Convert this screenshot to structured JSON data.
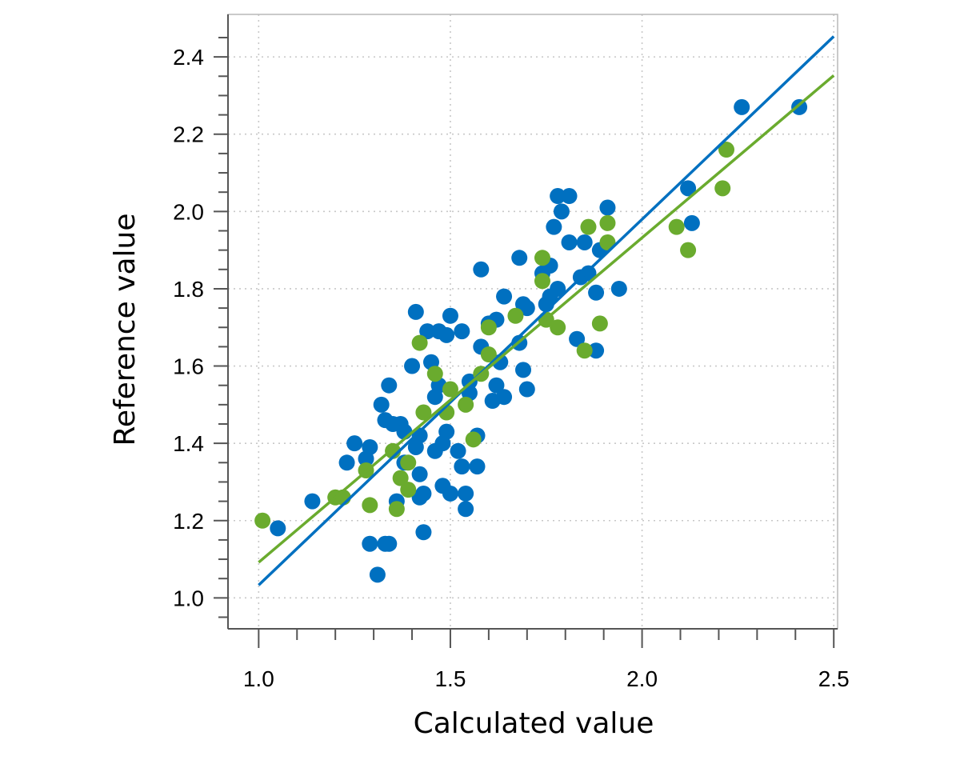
{
  "chart_data": {
    "type": "scatter",
    "title": "",
    "xlabel": "Calculated value",
    "ylabel": "Reference value",
    "xlim": [
      0.92,
      2.51
    ],
    "ylim": [
      0.92,
      2.51
    ],
    "x_ticks": [
      1.0,
      1.5,
      2.0,
      2.5
    ],
    "x_tick_labels": [
      "1.0",
      "1.5",
      "2.0",
      "2.5"
    ],
    "y_ticks": [
      1.0,
      1.2,
      1.4,
      1.6,
      1.8,
      2.0,
      2.2,
      2.4
    ],
    "y_tick_labels": [
      "1.0",
      "1.2",
      "1.4",
      "1.6",
      "1.8",
      "2.0",
      "2.2",
      "2.4"
    ],
    "grid": true,
    "legend": "none",
    "series": [
      {
        "color": "#0070C0",
        "points": [
          [
            1.05,
            1.18
          ],
          [
            1.14,
            1.25
          ],
          [
            1.23,
            1.35
          ],
          [
            1.25,
            1.4
          ],
          [
            1.28,
            1.36
          ],
          [
            1.29,
            1.14
          ],
          [
            1.29,
            1.39
          ],
          [
            1.31,
            1.06
          ],
          [
            1.32,
            1.5
          ],
          [
            1.33,
            1.14
          ],
          [
            1.34,
            1.14
          ],
          [
            1.33,
            1.46
          ],
          [
            1.34,
            1.55
          ],
          [
            1.35,
            1.45
          ],
          [
            1.36,
            1.25
          ],
          [
            1.37,
            1.45
          ],
          [
            1.38,
            1.43
          ],
          [
            1.38,
            1.35
          ],
          [
            1.4,
            1.6
          ],
          [
            1.41,
            1.74
          ],
          [
            1.41,
            1.39
          ],
          [
            1.42,
            1.26
          ],
          [
            1.42,
            1.32
          ],
          [
            1.42,
            1.42
          ],
          [
            1.43,
            1.27
          ],
          [
            1.43,
            1.17
          ],
          [
            1.44,
            1.69
          ],
          [
            1.45,
            1.61
          ],
          [
            1.46,
            1.38
          ],
          [
            1.46,
            1.52
          ],
          [
            1.47,
            1.69
          ],
          [
            1.47,
            1.55
          ],
          [
            1.48,
            1.4
          ],
          [
            1.48,
            1.29
          ],
          [
            1.49,
            1.68
          ],
          [
            1.49,
            1.43
          ],
          [
            1.5,
            1.73
          ],
          [
            1.5,
            1.27
          ],
          [
            1.52,
            1.38
          ],
          [
            1.53,
            1.34
          ],
          [
            1.53,
            1.69
          ],
          [
            1.54,
            1.27
          ],
          [
            1.54,
            1.23
          ],
          [
            1.55,
            1.56
          ],
          [
            1.55,
            1.53
          ],
          [
            1.57,
            1.42
          ],
          [
            1.57,
            1.34
          ],
          [
            1.58,
            1.65
          ],
          [
            1.58,
            1.85
          ],
          [
            1.6,
            1.71
          ],
          [
            1.61,
            1.51
          ],
          [
            1.62,
            1.55
          ],
          [
            1.62,
            1.72
          ],
          [
            1.63,
            1.61
          ],
          [
            1.64,
            1.52
          ],
          [
            1.64,
            1.78
          ],
          [
            1.68,
            1.88
          ],
          [
            1.68,
            1.66
          ],
          [
            1.69,
            1.59
          ],
          [
            1.69,
            1.76
          ],
          [
            1.7,
            1.54
          ],
          [
            1.7,
            1.75
          ],
          [
            1.74,
            1.84
          ],
          [
            1.75,
            1.76
          ],
          [
            1.76,
            1.78
          ],
          [
            1.76,
            1.86
          ],
          [
            1.77,
            1.96
          ],
          [
            1.78,
            1.8
          ],
          [
            1.78,
            2.04
          ],
          [
            1.79,
            2.0
          ],
          [
            1.81,
            2.04
          ],
          [
            1.81,
            1.92
          ],
          [
            1.83,
            1.67
          ],
          [
            1.84,
            1.83
          ],
          [
            1.85,
            1.92
          ],
          [
            1.86,
            1.84
          ],
          [
            1.88,
            1.79
          ],
          [
            1.88,
            1.64
          ],
          [
            1.89,
            1.9
          ],
          [
            1.91,
            2.01
          ],
          [
            1.94,
            1.8
          ],
          [
            2.12,
            2.06
          ],
          [
            2.13,
            1.97
          ],
          [
            2.26,
            2.27
          ],
          [
            2.41,
            2.27
          ]
        ],
        "fit_line": {
          "x": [
            1.0,
            2.5
          ],
          "y": [
            1.033,
            2.453
          ]
        }
      },
      {
        "color": "#6AAB2E",
        "points": [
          [
            1.01,
            1.2
          ],
          [
            1.2,
            1.26
          ],
          [
            1.22,
            1.26
          ],
          [
            1.28,
            1.33
          ],
          [
            1.29,
            1.24
          ],
          [
            1.35,
            1.38
          ],
          [
            1.36,
            1.23
          ],
          [
            1.37,
            1.31
          ],
          [
            1.39,
            1.35
          ],
          [
            1.39,
            1.28
          ],
          [
            1.42,
            1.66
          ],
          [
            1.43,
            1.48
          ],
          [
            1.46,
            1.58
          ],
          [
            1.49,
            1.48
          ],
          [
            1.5,
            1.54
          ],
          [
            1.54,
            1.5
          ],
          [
            1.56,
            1.41
          ],
          [
            1.58,
            1.58
          ],
          [
            1.6,
            1.63
          ],
          [
            1.6,
            1.7
          ],
          [
            1.67,
            1.73
          ],
          [
            1.74,
            1.88
          ],
          [
            1.74,
            1.82
          ],
          [
            1.75,
            1.72
          ],
          [
            1.78,
            1.7
          ],
          [
            1.85,
            1.64
          ],
          [
            1.86,
            1.96
          ],
          [
            1.89,
            1.71
          ],
          [
            1.91,
            1.92
          ],
          [
            1.91,
            1.97
          ],
          [
            2.09,
            1.96
          ],
          [
            2.12,
            1.9
          ],
          [
            2.21,
            2.06
          ],
          [
            2.22,
            2.16
          ]
        ],
        "fit_line": {
          "x": [
            1.0,
            2.5
          ],
          "y": [
            1.092,
            2.352
          ]
        }
      }
    ]
  }
}
